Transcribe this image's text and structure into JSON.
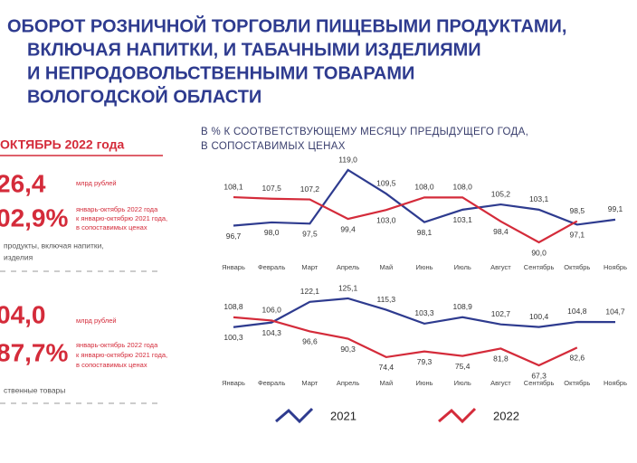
{
  "header": {
    "title_lines": [
      "ОБОРОТ РОЗНИЧНОЙ ТОРГОВЛИ ПИЩЕВЫМИ ПРОДУКТАМИ,",
      "ВКЛЮЧАЯ НАПИТКИ, И ТАБАЧНЫМИ ИЗДЕЛИЯМИ",
      "И НЕПРОДОВОЛЬСТВЕННЫМИ ТОВАРАМИ",
      "ВОЛОГОДСКОЙ ОБЛАСТИ"
    ]
  },
  "subtitle_lines": [
    "В % К СООТВЕТСТВУЮЩЕМУ МЕСЯЦУ ПРЕДЫДУЩЕГО ГОДА,",
    "В СОПОСТАВИМЫХ ЦЕНАХ"
  ],
  "period": "ОКТЯБРЬ 2022 года",
  "panels": [
    {
      "amount": "26,4",
      "amount_unit": "млрд рублей",
      "index": "02,9%",
      "index_note_lines": [
        "январь-октябрь 2022 года",
        "к январю-октябрю 2021 года,",
        "в сопоставимых ценах"
      ],
      "label_lines": [
        "продукты, включая напитки,",
        "изделия"
      ]
    },
    {
      "amount": "04,0",
      "amount_unit": "млрд рублей",
      "index": "87,7%",
      "index_note_lines": [
        "январь-октябрь 2022 года",
        "к январю-октябрю 2021 года,",
        "в сопоставимых ценах"
      ],
      "label_lines": [
        "ственные товары"
      ]
    }
  ],
  "chart_data": [
    {
      "type": "line",
      "categories": [
        "Январь",
        "Февраль",
        "Март",
        "Апрель",
        "Май",
        "Июнь",
        "Июль",
        "Август",
        "Сентябрь",
        "Октябрь",
        "Ноябрь"
      ],
      "series": [
        {
          "name": "2021",
          "color": "#2e3b8f",
          "values": [
            96.7,
            98.0,
            97.5,
            119.0,
            109.5,
            98.1,
            103.1,
            105.2,
            103.1,
            97.1,
            99.1
          ],
          "value_labels": [
            "96,7",
            "98,0",
            "97,5",
            "119,0",
            "109,5",
            "98,1",
            "103,1",
            "105,2",
            "103,1",
            "97,1",
            "99,1"
          ]
        },
        {
          "name": "2022",
          "color": "#d42b3a",
          "values": [
            108.1,
            107.5,
            107.2,
            99.4,
            103.0,
            108.0,
            108.0,
            98.4,
            90.0,
            98.5,
            null
          ],
          "value_labels": [
            "108,1",
            "107,5",
            "107,2",
            "99,4",
            "103,0",
            "108,0",
            "108,0",
            "98,4",
            "90,0",
            "98,5",
            null
          ]
        }
      ]
    },
    {
      "type": "line",
      "categories": [
        "Январь",
        "Февраль",
        "Март",
        "Апрель",
        "Май",
        "Июнь",
        "Июль",
        "Август",
        "Сентябрь",
        "Октябрь",
        "Ноябрь"
      ],
      "series": [
        {
          "name": "2021",
          "color": "#2e3b8f",
          "values": [
            100.3,
            104.3,
            122.1,
            125.1,
            115.3,
            103.3,
            108.9,
            102.7,
            100.4,
            104.8,
            104.7
          ],
          "value_labels": [
            "100,3",
            "104,3",
            "122,1",
            "125,1",
            "115,3",
            "103,3",
            "108,9",
            "102,7",
            "100,4",
            "104,8",
            "104,7"
          ]
        },
        {
          "name": "2022",
          "color": "#d42b3a",
          "values": [
            108.8,
            106.0,
            96.6,
            90.3,
            74.4,
            79.3,
            75.4,
            81.8,
            67.3,
            82.6,
            null
          ],
          "value_labels": [
            "108,8",
            "106,0",
            "96,6",
            "90,3",
            "74,4",
            "79,3",
            "75,4",
            "81,8",
            "67,3",
            "82,6",
            null
          ]
        }
      ]
    }
  ]
}
